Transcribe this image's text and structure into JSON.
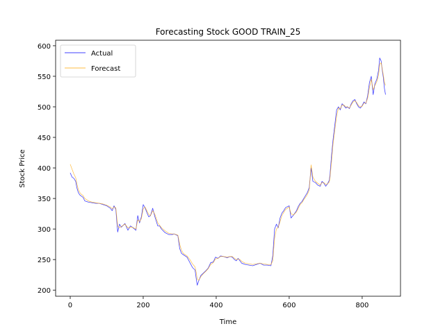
{
  "chart_data": {
    "type": "line",
    "title": "Forecasting Stock GOOD TRAIN_25",
    "xlabel": "Time",
    "ylabel": "Stock Price",
    "xlim": [
      -40,
      905
    ],
    "ylim": [
      190,
      609
    ],
    "xticks": [
      0,
      200,
      400,
      600,
      800
    ],
    "yticks": [
      200,
      250,
      300,
      350,
      400,
      450,
      500,
      550,
      600
    ],
    "grid": false,
    "legend_position": "top-left",
    "series": [
      {
        "name": "Actual",
        "color": "#0000ff",
        "points": [
          [
            0,
            392
          ],
          [
            5,
            385
          ],
          [
            10,
            383
          ],
          [
            15,
            378
          ],
          [
            18,
            368
          ],
          [
            22,
            360
          ],
          [
            26,
            356
          ],
          [
            30,
            354
          ],
          [
            35,
            352
          ],
          [
            40,
            346
          ],
          [
            50,
            344
          ],
          [
            60,
            343
          ],
          [
            70,
            342
          ],
          [
            80,
            342
          ],
          [
            90,
            340
          ],
          [
            100,
            338
          ],
          [
            110,
            334
          ],
          [
            115,
            330
          ],
          [
            120,
            338
          ],
          [
            125,
            332
          ],
          [
            130,
            295
          ],
          [
            135,
            308
          ],
          [
            140,
            303
          ],
          [
            150,
            309
          ],
          [
            158,
            298
          ],
          [
            165,
            305
          ],
          [
            170,
            303
          ],
          [
            180,
            298
          ],
          [
            185,
            322
          ],
          [
            190,
            310
          ],
          [
            195,
            320
          ],
          [
            200,
            340
          ],
          [
            205,
            335
          ],
          [
            210,
            327
          ],
          [
            215,
            320
          ],
          [
            220,
            322
          ],
          [
            226,
            334
          ],
          [
            232,
            320
          ],
          [
            240,
            305
          ],
          [
            245,
            305
          ],
          [
            250,
            300
          ],
          [
            260,
            294
          ],
          [
            270,
            291
          ],
          [
            280,
            291
          ],
          [
            285,
            292
          ],
          [
            295,
            289
          ],
          [
            300,
            268
          ],
          [
            305,
            260
          ],
          [
            310,
            258
          ],
          [
            320,
            254
          ],
          [
            328,
            245
          ],
          [
            335,
            237
          ],
          [
            342,
            233
          ],
          [
            345,
            220
          ],
          [
            348,
            208
          ],
          [
            352,
            215
          ],
          [
            358,
            224
          ],
          [
            365,
            228
          ],
          [
            372,
            232
          ],
          [
            378,
            236
          ],
          [
            385,
            245
          ],
          [
            392,
            246
          ],
          [
            398,
            254
          ],
          [
            405,
            252
          ],
          [
            412,
            256
          ],
          [
            420,
            255
          ],
          [
            430,
            253
          ],
          [
            438,
            255
          ],
          [
            444,
            254
          ],
          [
            450,
            250
          ],
          [
            455,
            248
          ],
          [
            460,
            252
          ],
          [
            465,
            248
          ],
          [
            470,
            244
          ],
          [
            480,
            242
          ],
          [
            490,
            241
          ],
          [
            500,
            240
          ],
          [
            510,
            242
          ],
          [
            520,
            244
          ],
          [
            530,
            241
          ],
          [
            540,
            241
          ],
          [
            550,
            240
          ],
          [
            555,
            256
          ],
          [
            560,
            300
          ],
          [
            565,
            308
          ],
          [
            570,
            302
          ],
          [
            575,
            318
          ],
          [
            580,
            326
          ],
          [
            585,
            330
          ],
          [
            590,
            335
          ],
          [
            600,
            338
          ],
          [
            605,
            318
          ],
          [
            612,
            323
          ],
          [
            620,
            330
          ],
          [
            625,
            337
          ],
          [
            630,
            342
          ],
          [
            635,
            345
          ],
          [
            640,
            350
          ],
          [
            645,
            355
          ],
          [
            650,
            360
          ],
          [
            655,
            368
          ],
          [
            660,
            400
          ],
          [
            665,
            378
          ],
          [
            672,
            376
          ],
          [
            678,
            372
          ],
          [
            685,
            370
          ],
          [
            690,
            378
          ],
          [
            695,
            375
          ],
          [
            700,
            370
          ],
          [
            705,
            374
          ],
          [
            710,
            380
          ],
          [
            712,
            390
          ],
          [
            716,
            420
          ],
          [
            720,
            445
          ],
          [
            725,
            470
          ],
          [
            730,
            495
          ],
          [
            735,
            500
          ],
          [
            740,
            495
          ],
          [
            745,
            505
          ],
          [
            750,
            502
          ],
          [
            755,
            498
          ],
          [
            760,
            500
          ],
          [
            765,
            497
          ],
          [
            770,
            505
          ],
          [
            775,
            510
          ],
          [
            780,
            512
          ],
          [
            785,
            505
          ],
          [
            790,
            500
          ],
          [
            795,
            498
          ],
          [
            800,
            502
          ],
          [
            805,
            508
          ],
          [
            810,
            505
          ],
          [
            815,
            518
          ],
          [
            820,
            540
          ],
          [
            825,
            550
          ],
          [
            830,
            520
          ],
          [
            835,
            538
          ],
          [
            840,
            545
          ],
          [
            845,
            560
          ],
          [
            848,
            580
          ],
          [
            852,
            575
          ],
          [
            855,
            560
          ],
          [
            858,
            548
          ],
          [
            861,
            530
          ],
          [
            864,
            520
          ]
        ]
      },
      {
        "name": "Forecast",
        "color": "#ffa500",
        "points": [
          [
            0,
            406
          ],
          [
            5,
            398
          ],
          [
            10,
            390
          ],
          [
            15,
            384
          ],
          [
            18,
            375
          ],
          [
            22,
            365
          ],
          [
            26,
            360
          ],
          [
            30,
            357
          ],
          [
            35,
            355
          ],
          [
            40,
            350
          ],
          [
            50,
            346
          ],
          [
            60,
            344
          ],
          [
            70,
            343
          ],
          [
            80,
            342
          ],
          [
            90,
            341
          ],
          [
            100,
            339
          ],
          [
            110,
            336
          ],
          [
            115,
            333
          ],
          [
            120,
            336
          ],
          [
            125,
            335
          ],
          [
            130,
            305
          ],
          [
            135,
            302
          ],
          [
            140,
            304
          ],
          [
            150,
            308
          ],
          [
            158,
            302
          ],
          [
            165,
            303
          ],
          [
            170,
            303
          ],
          [
            180,
            300
          ],
          [
            185,
            315
          ],
          [
            190,
            312
          ],
          [
            195,
            317
          ],
          [
            200,
            333
          ],
          [
            205,
            336
          ],
          [
            210,
            330
          ],
          [
            215,
            324
          ],
          [
            220,
            322
          ],
          [
            226,
            330
          ],
          [
            232,
            324
          ],
          [
            240,
            310
          ],
          [
            245,
            306
          ],
          [
            250,
            302
          ],
          [
            260,
            297
          ],
          [
            270,
            293
          ],
          [
            280,
            292
          ],
          [
            285,
            292
          ],
          [
            295,
            290
          ],
          [
            300,
            275
          ],
          [
            305,
            265
          ],
          [
            310,
            260
          ],
          [
            320,
            256
          ],
          [
            328,
            250
          ],
          [
            335,
            243
          ],
          [
            342,
            238
          ],
          [
            345,
            230
          ],
          [
            348,
            218
          ],
          [
            352,
            216
          ],
          [
            358,
            222
          ],
          [
            365,
            227
          ],
          [
            372,
            231
          ],
          [
            378,
            235
          ],
          [
            385,
            242
          ],
          [
            392,
            245
          ],
          [
            398,
            251
          ],
          [
            405,
            252
          ],
          [
            412,
            255
          ],
          [
            420,
            255
          ],
          [
            430,
            254
          ],
          [
            438,
            255
          ],
          [
            444,
            255
          ],
          [
            450,
            252
          ],
          [
            455,
            250
          ],
          [
            460,
            251
          ],
          [
            465,
            250
          ],
          [
            470,
            247
          ],
          [
            480,
            244
          ],
          [
            490,
            243
          ],
          [
            500,
            242
          ],
          [
            510,
            243
          ],
          [
            520,
            244
          ],
          [
            530,
            243
          ],
          [
            540,
            242
          ],
          [
            550,
            242
          ],
          [
            555,
            248
          ],
          [
            560,
            285
          ],
          [
            565,
            300
          ],
          [
            570,
            303
          ],
          [
            575,
            312
          ],
          [
            580,
            322
          ],
          [
            585,
            327
          ],
          [
            590,
            332
          ],
          [
            600,
            336
          ],
          [
            605,
            325
          ],
          [
            612,
            323
          ],
          [
            620,
            328
          ],
          [
            625,
            334
          ],
          [
            630,
            340
          ],
          [
            635,
            343
          ],
          [
            640,
            348
          ],
          [
            645,
            352
          ],
          [
            650,
            357
          ],
          [
            655,
            364
          ],
          [
            660,
            405
          ],
          [
            665,
            385
          ],
          [
            672,
            378
          ],
          [
            678,
            375
          ],
          [
            685,
            372
          ],
          [
            690,
            376
          ],
          [
            695,
            376
          ],
          [
            700,
            373
          ],
          [
            705,
            374
          ],
          [
            710,
            377
          ],
          [
            712,
            385
          ],
          [
            716,
            410
          ],
          [
            720,
            438
          ],
          [
            725,
            462
          ],
          [
            730,
            485
          ],
          [
            735,
            498
          ],
          [
            740,
            497
          ],
          [
            745,
            503
          ],
          [
            750,
            503
          ],
          [
            755,
            500
          ],
          [
            760,
            500
          ],
          [
            765,
            498
          ],
          [
            770,
            503
          ],
          [
            775,
            508
          ],
          [
            780,
            510
          ],
          [
            785,
            507
          ],
          [
            790,
            502
          ],
          [
            795,
            500
          ],
          [
            800,
            501
          ],
          [
            805,
            506
          ],
          [
            810,
            506
          ],
          [
            815,
            514
          ],
          [
            820,
            532
          ],
          [
            825,
            545
          ],
          [
            830,
            528
          ],
          [
            835,
            535
          ],
          [
            840,
            541
          ],
          [
            845,
            552
          ],
          [
            848,
            570
          ],
          [
            852,
            572
          ],
          [
            855,
            562
          ],
          [
            858,
            552
          ],
          [
            861,
            540
          ],
          [
            864,
            535
          ]
        ]
      }
    ]
  }
}
